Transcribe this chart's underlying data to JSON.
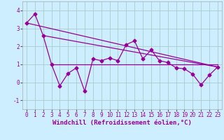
{
  "x": [
    0,
    1,
    2,
    3,
    4,
    5,
    6,
    7,
    8,
    9,
    10,
    11,
    12,
    13,
    14,
    15,
    16,
    17,
    18,
    19,
    20,
    21,
    22,
    23
  ],
  "y_main": [
    3.3,
    3.8,
    2.6,
    1.0,
    -0.2,
    0.5,
    0.8,
    -0.5,
    1.3,
    1.2,
    1.35,
    1.2,
    2.1,
    2.3,
    1.3,
    1.8,
    1.2,
    1.1,
    0.8,
    0.75,
    0.45,
    -0.15,
    0.4,
    0.85
  ],
  "trend1_x": [
    0,
    23
  ],
  "trend1_y": [
    3.3,
    0.85
  ],
  "trend2_x": [
    2,
    23
  ],
  "trend2_y": [
    2.6,
    0.85
  ],
  "hline_y": 1.0,
  "hline_x_start": 3,
  "hline_x_end": 23,
  "color": "#990099",
  "background": "#cceeff",
  "grid_color": "#aacccc",
  "xlabel": "Windchill (Refroidissement éolien,°C)",
  "ylim": [
    -1.5,
    4.5
  ],
  "xlim": [
    -0.5,
    23.5
  ],
  "yticks": [
    -1,
    0,
    1,
    2,
    3,
    4
  ],
  "xticks": [
    0,
    1,
    2,
    3,
    4,
    5,
    6,
    7,
    8,
    9,
    10,
    11,
    12,
    13,
    14,
    15,
    16,
    17,
    18,
    19,
    20,
    21,
    22,
    23
  ],
  "marker": "D",
  "markersize": 2.5,
  "linewidth": 0.9,
  "xlabel_fontsize": 6.5,
  "tick_fontsize": 5.5
}
